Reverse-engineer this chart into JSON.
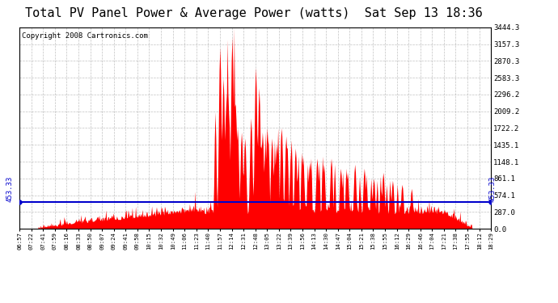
{
  "title": "Total PV Panel Power & Average Power (watts)  Sat Sep 13 18:36",
  "copyright": "Copyright 2008 Cartronics.com",
  "average_power": 453.33,
  "y_max": 3444.3,
  "y_ticks": [
    0.0,
    287.0,
    574.1,
    861.1,
    1148.1,
    1435.1,
    1722.2,
    2009.2,
    2296.2,
    2583.3,
    2870.3,
    3157.3,
    3444.3
  ],
  "x_labels": [
    "06:57",
    "07:22",
    "07:41",
    "07:59",
    "08:16",
    "08:33",
    "08:50",
    "09:07",
    "09:24",
    "09:41",
    "09:58",
    "10:15",
    "10:32",
    "10:49",
    "11:06",
    "11:23",
    "11:40",
    "11:57",
    "12:14",
    "12:31",
    "12:48",
    "13:05",
    "13:22",
    "13:39",
    "13:56",
    "14:13",
    "14:30",
    "14:47",
    "15:04",
    "15:21",
    "15:38",
    "15:55",
    "16:12",
    "16:29",
    "16:46",
    "17:04",
    "17:21",
    "17:38",
    "17:55",
    "18:12",
    "18:29"
  ],
  "bar_color": "#ff0000",
  "avg_line_color": "#0000cc",
  "background_color": "#ffffff",
  "plot_bg_color": "#ffffff",
  "grid_color": "#999999",
  "title_fontsize": 11,
  "copyright_fontsize": 6.5,
  "avg_label_fontsize": 6.5,
  "spike_positions": [
    0.425,
    0.432,
    0.438,
    0.443,
    0.45,
    0.458,
    0.462,
    0.47,
    0.478,
    0.49,
    0.5,
    0.508,
    0.515,
    0.525,
    0.535,
    0.545,
    0.555,
    0.565,
    0.575,
    0.585,
    0.6,
    0.615,
    0.63,
    0.645,
    0.66,
    0.68,
    0.695,
    0.71,
    0.73,
    0.75,
    0.77,
    0.79,
    0.81,
    0.83
  ],
  "spike_heights": [
    0.9,
    0.75,
    0.62,
    0.58,
    0.95,
    0.62,
    0.5,
    0.48,
    0.45,
    0.55,
    0.8,
    0.7,
    0.48,
    0.5,
    0.45,
    0.42,
    0.5,
    0.46,
    0.38,
    0.4,
    0.36,
    0.33,
    0.35,
    0.32,
    0.35,
    0.3,
    0.28,
    0.32,
    0.3,
    0.25,
    0.28,
    0.24,
    0.22,
    0.2
  ],
  "n_points": 700
}
